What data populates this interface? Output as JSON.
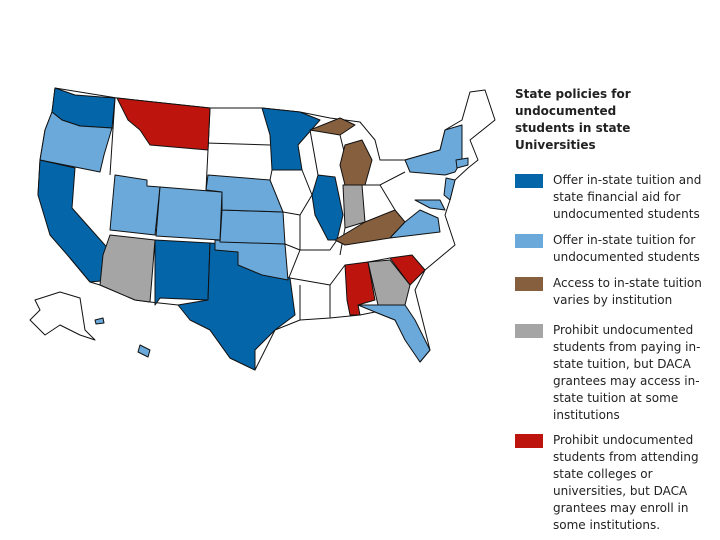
{
  "legend": {
    "title": "State policies for undocumented students in state Universities",
    "items": [
      {
        "label": "Offer in-state tuition and state financial aid for undocumented students",
        "color": "#0565a9"
      },
      {
        "label": "Offer in-state tuition for undocumented students",
        "color": "#6aa9da"
      },
      {
        "label": "Access to in-state tuition varies by institution",
        "color": "#865f3f"
      },
      {
        "label": "Prohibit undocumented students from paying in-state tuition, but DACA grantees may access in-state tuition at some institutions",
        "color": "#a5a5a5"
      },
      {
        "label": "Prohibit undocumented students from attending state colleges or universities, but DACA grantees may enroll in some institutions.",
        "color": "#bd150e"
      }
    ]
  }
}
